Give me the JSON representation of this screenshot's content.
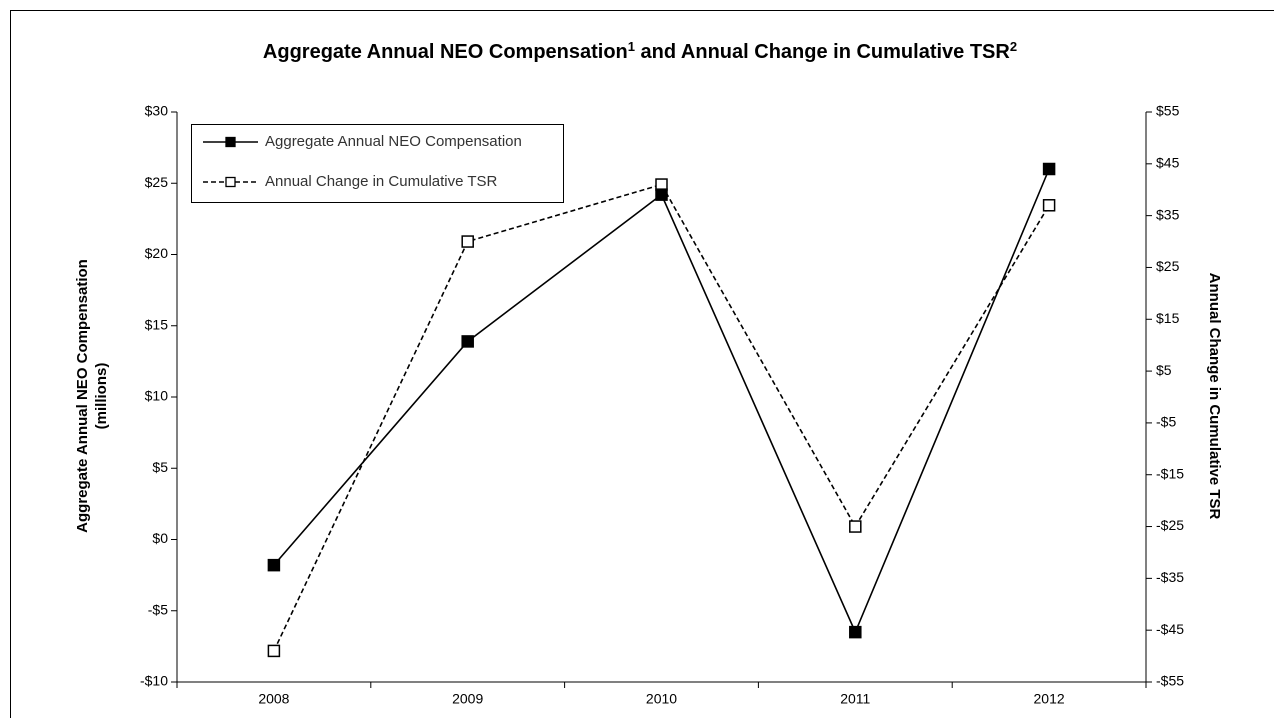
{
  "chart_data": {
    "type": "line",
    "title": [
      {
        "text": "Aggregate Annual NEO Compensation",
        "sup": "1"
      },
      {
        "text": " and Annual Change in Cumulative TSR",
        "sup": "2"
      }
    ],
    "ylabel": [
      "Aggregate Annual NEO Compensation",
      "(millions)"
    ],
    "y2label": "Annual Change in Cumulative TSR",
    "categories": [
      "2008",
      "2009",
      "2010",
      "2011",
      "2012"
    ],
    "series": [
      {
        "name": "Aggregate Annual NEO Compensation",
        "color": "#000000",
        "dashed": false,
        "marker": "filled",
        "values": [
          -1.8,
          13.9,
          24.2,
          -6.5,
          26.0
        ]
      },
      {
        "name": "Annual Change in Cumulative TSR",
        "color": "#000000",
        "dashed": true,
        "marker": "open",
        "axis": "y2",
        "values": [
          -49,
          30,
          41,
          -25,
          37
        ]
      }
    ],
    "ylim": [
      -10,
      30
    ],
    "yticks": [
      {
        "value": -10,
        "label": "-$10"
      },
      {
        "value": -5,
        "label": "-$5"
      },
      {
        "value": 0,
        "label": "$0"
      },
      {
        "value": 5,
        "label": "$5"
      },
      {
        "value": 10,
        "label": "$10"
      },
      {
        "value": 15,
        "label": "$15"
      },
      {
        "value": 20,
        "label": "$20"
      },
      {
        "value": 25,
        "label": "$25"
      },
      {
        "value": 30,
        "label": "$30"
      }
    ],
    "y2lim": [
      -55,
      55
    ],
    "y2ticks": [
      {
        "value": -55,
        "label": "-$55"
      },
      {
        "value": -45,
        "label": "-$45"
      },
      {
        "value": -35,
        "label": "-$35"
      },
      {
        "value": -25,
        "label": "-$25"
      },
      {
        "value": -15,
        "label": "-$15"
      },
      {
        "value": -5,
        "label": "-$5"
      },
      {
        "value": 5,
        "label": "$5"
      },
      {
        "value": 15,
        "label": "$15"
      },
      {
        "value": 25,
        "label": "$25"
      },
      {
        "value": 35,
        "label": "$35"
      },
      {
        "value": 45,
        "label": "$45"
      },
      {
        "value": 55,
        "label": "$55"
      }
    ],
    "grid": false,
    "legend": "top-left"
  }
}
